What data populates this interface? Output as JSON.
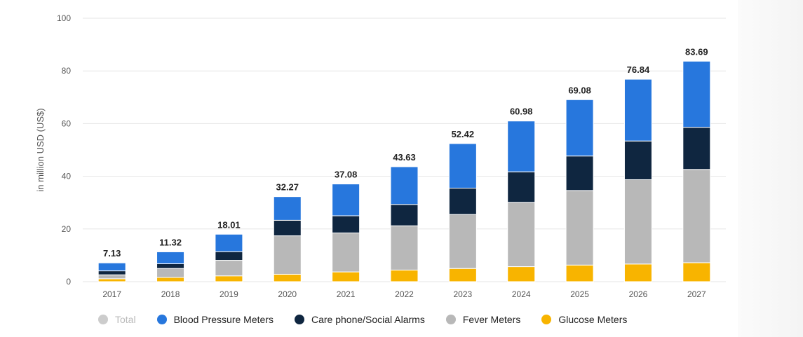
{
  "chart_data": {
    "type": "bar",
    "stacked": true,
    "categories": [
      "2017",
      "2018",
      "2019",
      "2020",
      "2021",
      "2022",
      "2023",
      "2024",
      "2025",
      "2026",
      "2027"
    ],
    "ylabel": "in million USD (US$)",
    "ylim": [
      0,
      100
    ],
    "yticks": [
      0,
      20,
      40,
      60,
      80,
      100
    ],
    "grid": true,
    "legend_position": "bottom",
    "totals": [
      7.13,
      11.32,
      18.01,
      32.27,
      37.08,
      43.63,
      52.42,
      60.98,
      69.08,
      76.84,
      83.69
    ],
    "series": [
      {
        "name": "Glucose Meters",
        "color": "#f8b400",
        "values": [
          1.1,
          1.6,
          2.2,
          2.8,
          3.7,
          4.4,
          5.0,
          5.7,
          6.3,
          6.7,
          7.2
        ]
      },
      {
        "name": "Fever Meters",
        "color": "#b8b8b8",
        "values": [
          1.5,
          3.4,
          5.9,
          14.6,
          14.8,
          16.8,
          20.5,
          24.4,
          28.3,
          32.0,
          35.4
        ]
      },
      {
        "name": "Care phone/Social Alarms",
        "color": "#0f2640",
        "values": [
          1.5,
          1.8,
          3.3,
          5.9,
          6.5,
          8.1,
          10.0,
          11.6,
          13.1,
          14.7,
          16.0
        ]
      },
      {
        "name": "Blood Pressure Meters",
        "color": "#2777dd",
        "values": [
          3.03,
          4.52,
          6.61,
          8.97,
          12.08,
          14.33,
          16.92,
          19.28,
          21.38,
          23.44,
          25.09
        ]
      }
    ]
  },
  "legend": {
    "items": [
      {
        "label": "Total",
        "color": "#cccccc",
        "disabled": true
      },
      {
        "label": "Blood Pressure Meters",
        "color": "#2777dd",
        "disabled": false
      },
      {
        "label": "Care phone/Social Alarms",
        "color": "#0f2640",
        "disabled": false
      },
      {
        "label": "Fever Meters",
        "color": "#b8b8b8",
        "disabled": false
      },
      {
        "label": "Glucose Meters",
        "color": "#f8b400",
        "disabled": false
      }
    ]
  }
}
